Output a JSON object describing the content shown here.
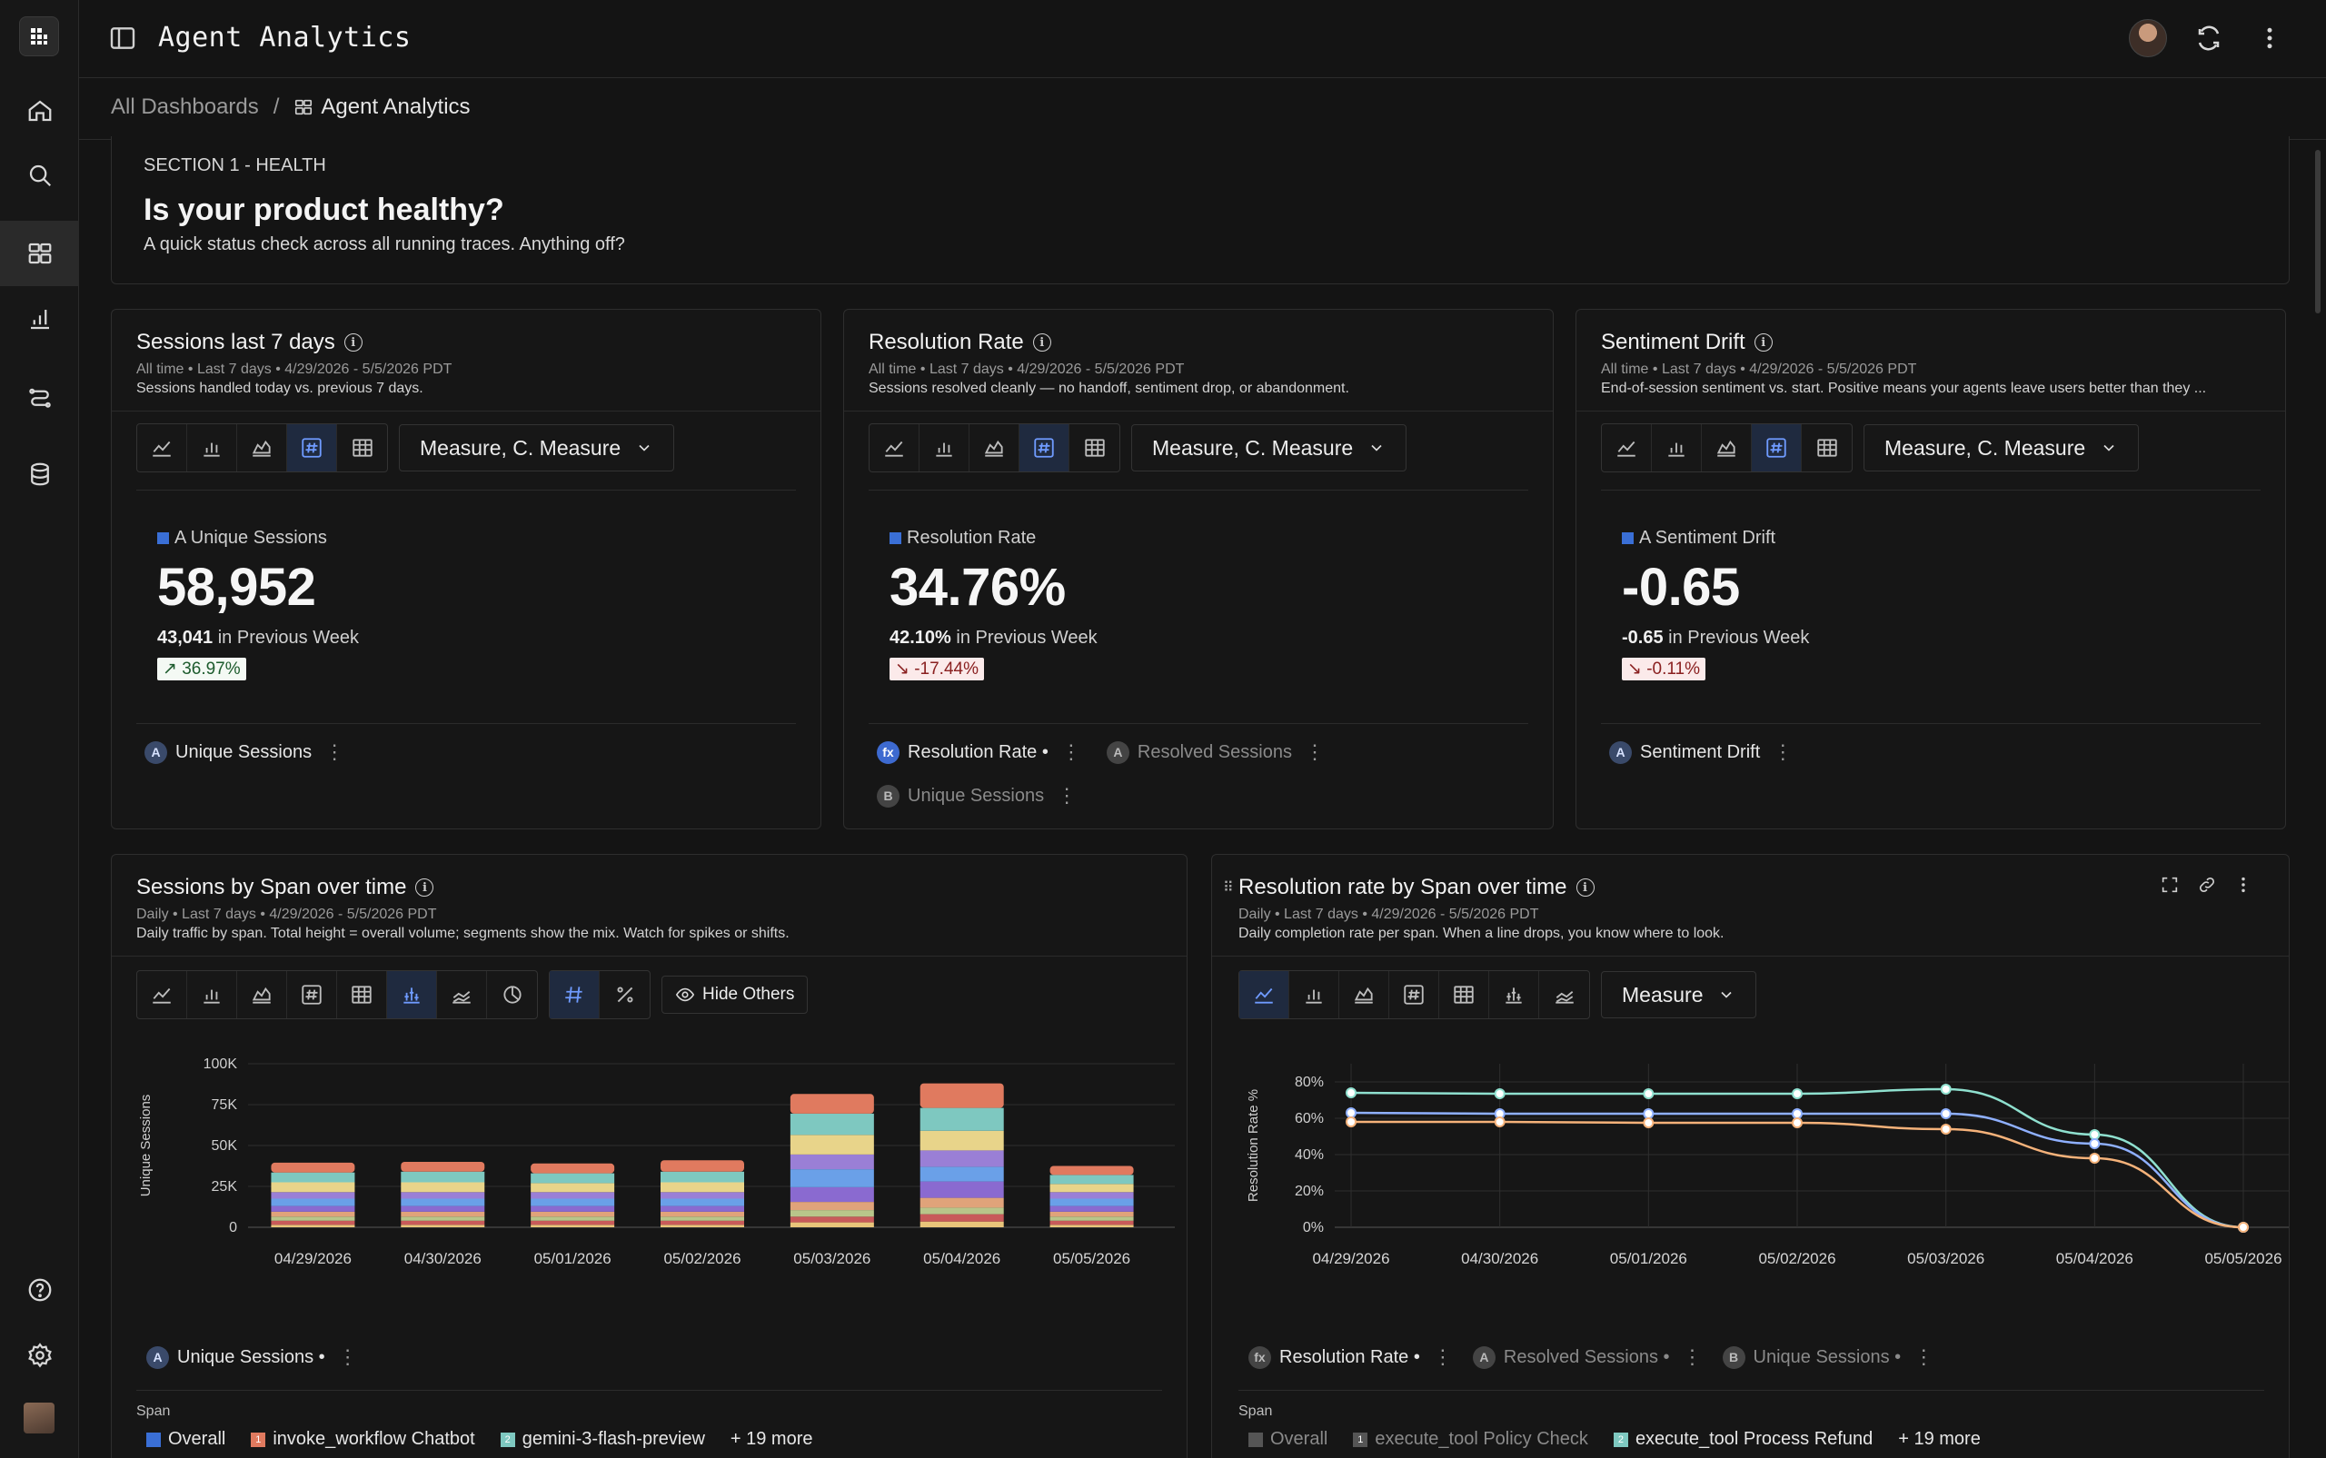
{
  "app": {
    "title": "Agent Analytics"
  },
  "sidebar": {
    "items": [
      {
        "name": "home-icon"
      },
      {
        "name": "search-icon"
      },
      {
        "name": "dashboards-icon"
      },
      {
        "name": "bar-chart-icon"
      },
      {
        "name": "traces-icon"
      },
      {
        "name": "database-icon"
      },
      {
        "name": "help-icon"
      },
      {
        "name": "settings-icon"
      }
    ]
  },
  "breadcrumb": {
    "root": "All Dashboards",
    "separator": "/",
    "current": "Agent Analytics"
  },
  "section": {
    "tag": "SECTION 1 - HEALTH",
    "title": "Is your product healthy?",
    "subtitle": "A quick status check across all running traces. Anything off?"
  },
  "kpis": [
    {
      "title": "Sessions last 7 days",
      "meta": "All time  •  Last 7 days  •  4/29/2026 - 5/5/2026  PDT",
      "desc": "Sessions handled today vs. previous 7 days.",
      "measure_label": "Measure, C. Measure",
      "metric_label": "A Unique Sessions",
      "value": "58,952",
      "prev_value": "43,041",
      "prev_suffix": " in Previous Week",
      "change": "↗ 36.97%",
      "direction": "up",
      "chips": [
        {
          "badge": "A",
          "label": "Unique Sessions"
        }
      ]
    },
    {
      "title": "Resolution Rate",
      "meta": "All time  •  Last 7 days  •  4/29/2026 - 5/5/2026  PDT",
      "desc": "Sessions resolved cleanly — no handoff, sentiment drop, or abandonment.",
      "measure_label": "Measure, C. Measure",
      "metric_label": "Resolution Rate",
      "value": "34.76%",
      "prev_value": "42.10%",
      "prev_suffix": " in Previous Week",
      "change": "↘ -17.44%",
      "direction": "down",
      "chips": [
        {
          "badge": "fx",
          "label": "Resolution Rate •"
        },
        {
          "badge": "A",
          "label": "Resolved Sessions"
        },
        {
          "badge": "B",
          "label": "Unique Sessions"
        }
      ]
    },
    {
      "title": "Sentiment Drift",
      "meta": "All time  •  Last 7 days  •  4/29/2026 - 5/5/2026  PDT",
      "desc": "End-of-session sentiment vs. start. Positive means your agents leave users better than they ...",
      "measure_label": "Measure, C. Measure",
      "metric_label": "A Sentiment Drift",
      "value": "-0.65",
      "prev_value": "-0.65",
      "prev_suffix": " in Previous Week",
      "change": "↘ -0.11%",
      "direction": "down",
      "chips": [
        {
          "badge": "A",
          "label": "Sentiment Drift"
        }
      ]
    }
  ],
  "bar_card": {
    "title": "Sessions by Span over time",
    "meta": "Daily  •  Last 7 days  •  4/29/2026 - 5/5/2026  PDT",
    "desc": "Daily traffic by span. Total height = overall volume; segments show the mix. Watch for spikes or shifts.",
    "hide_others": "Hide Others",
    "chip": "Unique Sessions •",
    "span_label": "Span",
    "legend": [
      {
        "label": "Overall",
        "color": "#3a6fd6",
        "num": ""
      },
      {
        "label": "invoke_workflow Chatbot",
        "color": "#e07a5f",
        "num": "1"
      },
      {
        "label": "gemini-3-flash-preview",
        "color": "#7ec8c0",
        "num": "2"
      }
    ],
    "more": "+ 19 more"
  },
  "line_card": {
    "title": "Resolution rate by Span over time",
    "meta": "Daily  •  Last 7 days  •  4/29/2026 - 5/5/2026  PDT",
    "desc": "Daily completion rate per span. When a line drops, you know where to look.",
    "measure_label": "Measure",
    "chips": [
      {
        "badge": "fx",
        "label": "Resolution Rate •"
      },
      {
        "badge": "A",
        "label": "Resolved Sessions •"
      },
      {
        "badge": "B",
        "label": "Unique Sessions •"
      }
    ],
    "span_label": "Span",
    "legend": [
      {
        "label": "Overall",
        "color": "#555555",
        "num": ""
      },
      {
        "label": "execute_tool Policy Check",
        "color": "#555555",
        "num": "1"
      },
      {
        "label": "execute_tool Process Refund",
        "color": "#7ec8c0",
        "num": "2"
      }
    ],
    "more": "+ 19 more"
  },
  "chart_data": [
    {
      "type": "bar",
      "stacked": true,
      "title": "Sessions by Span over time",
      "ylabel": "Unique Sessions",
      "ylim": [
        0,
        100000
      ],
      "yticks": [
        "0",
        "25K",
        "50K",
        "75K",
        "100K"
      ],
      "categories": [
        "04/29/2026",
        "04/30/2026",
        "05/01/2026",
        "05/02/2026",
        "05/03/2026",
        "05/04/2026",
        "05/05/2026"
      ],
      "series": [
        {
          "color": "#e8c47a",
          "values": [
            1500,
            1500,
            1500,
            1500,
            3000,
            3500,
            1500
          ]
        },
        {
          "color": "#c85a5a",
          "values": [
            2500,
            2500,
            2500,
            2500,
            3500,
            4500,
            2500
          ]
        },
        {
          "color": "#b8c58a",
          "values": [
            2500,
            2500,
            2500,
            2500,
            4000,
            4000,
            2500
          ]
        },
        {
          "color": "#e0a37a",
          "values": [
            3000,
            3000,
            3000,
            3000,
            5000,
            6000,
            3000
          ]
        },
        {
          "color": "#8a6ad0",
          "values": [
            3500,
            3500,
            3500,
            3500,
            9000,
            10000,
            3500
          ]
        },
        {
          "color": "#6aa0e8",
          "values": [
            4500,
            4500,
            4500,
            4500,
            11000,
            9000,
            4500
          ]
        },
        {
          "color": "#9a7fd6",
          "values": [
            4000,
            4000,
            4000,
            4000,
            9000,
            10000,
            4000
          ]
        },
        {
          "color": "#e8d48a",
          "values": [
            6000,
            6000,
            5500,
            6000,
            12000,
            12000,
            5000
          ]
        },
        {
          "color": "#7ec8c0",
          "values": [
            6000,
            6500,
            6000,
            6500,
            13000,
            14000,
            5500
          ]
        },
        {
          "color": "#e07a5f",
          "values": [
            6000,
            6000,
            6000,
            7000,
            12000,
            15000,
            5500
          ]
        }
      ]
    },
    {
      "type": "line",
      "title": "Resolution rate by Span over time",
      "ylabel": "Resolution Rate %",
      "ylim": [
        0,
        90
      ],
      "yticks": [
        "0%",
        "20%",
        "40%",
        "60%",
        "80%"
      ],
      "categories": [
        "04/29/2026",
        "04/30/2026",
        "05/01/2026",
        "05/02/2026",
        "05/03/2026",
        "05/04/2026",
        "05/05/2026"
      ],
      "series": [
        {
          "color": "#8fe0cf",
          "values": [
            74,
            73.5,
            73.5,
            73.5,
            76,
            51,
            0
          ]
        },
        {
          "color": "#8fb0ff",
          "values": [
            63,
            62.5,
            62.5,
            62.5,
            62.5,
            46,
            0
          ]
        },
        {
          "color": "#f5b27a",
          "values": [
            58,
            58,
            57.5,
            57.5,
            54,
            38,
            0
          ]
        }
      ]
    }
  ]
}
